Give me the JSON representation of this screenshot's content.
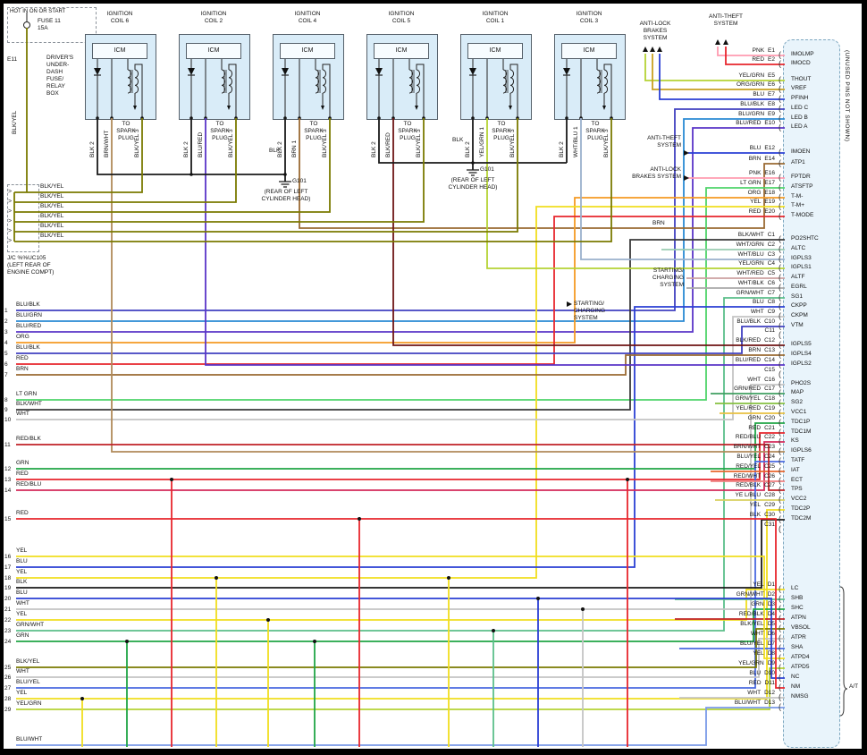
{
  "diagram": {
    "power": {
      "header": "HOT IN ON OR START",
      "fuse": "FUSE 11",
      "amps": "15A",
      "connector": "E11",
      "box": [
        "DRIVER'S",
        "UNDER-",
        "DASH",
        "FUSE/",
        "RELAY",
        "BOX"
      ],
      "wire": "BLK/YEL"
    },
    "junction": {
      "rows": [
        "BLK/YEL",
        "BLK/YEL",
        "BLK/YEL",
        "BLK/YEL",
        "BLK/YEL",
        "BLK/YEL"
      ],
      "name": "J/C %%UC105",
      "loc": [
        "(LEFT REAR OF",
        "ENGINE COMPT)"
      ]
    },
    "coils": [
      {
        "title": [
          "IGNITION",
          "COIL 6"
        ],
        "module": "ICM",
        "left": "BLK 2",
        "mid": "BRN/WHT",
        "right": "BLK/YEL 3",
        "spark": [
          "TO",
          "SPARK",
          "PLUG"
        ]
      },
      {
        "title": [
          "IGNITION",
          "COIL 2"
        ],
        "module": "ICM",
        "left": "BLK 2",
        "mid": "BLU/RED",
        "right": "BLK/YEL 3",
        "spark": [
          "TO",
          "SPARK",
          "PLUG"
        ]
      },
      {
        "title": [
          "IGNITION",
          "COIL 4"
        ],
        "module": "ICM",
        "left": "BLK 2",
        "mid": "BRN 1",
        "right": "BLK/YEL 3",
        "spark": [
          "TO",
          "SPARK",
          "PLUG"
        ]
      },
      {
        "title": [
          "IGNITION",
          "COIL 5"
        ],
        "module": "ICM",
        "left": "BLK 2",
        "mid": "BLK/RED",
        "right": "BLK/YEL 3",
        "spark": [
          "TO",
          "SPARK",
          "PLUG"
        ]
      },
      {
        "title": [
          "IGNITION",
          "COIL 1"
        ],
        "module": "ICM",
        "left": "BLK 2",
        "mid": "YEL/GRN 1",
        "right": "BLK/YEL 3",
        "spark": [
          "TO",
          "SPARK",
          "PLUG"
        ]
      },
      {
        "title": [
          "IGNITION",
          "COIL 3"
        ],
        "module": "ICM",
        "left": "BLK 2",
        "mid": "WHT/BLU 1",
        "right": "BLK/YEL 3",
        "spark": [
          "TO",
          "SPARK",
          "PLUG"
        ]
      }
    ],
    "grounds": [
      {
        "wire": "BLK",
        "id": "G101",
        "loc": [
          "(REAR OF LEFT",
          "CYLINDER HEAD)"
        ]
      },
      {
        "wire": "BLK",
        "id": "G101",
        "loc": [
          "(REAR OF LEFT",
          "CYLINDER HEAD)"
        ]
      }
    ],
    "systems": {
      "abs_top": [
        "ANTI-LOCK",
        "BRAKES",
        "SYSTEM"
      ],
      "theft_top": [
        "ANTI-THEFT",
        "SYSTEM"
      ],
      "theft_mid": [
        "ANTI-THEFT",
        "SYSTEM"
      ],
      "abs_mid": [
        "ANTI-LOCK",
        "BRAKES SYSTEM"
      ],
      "charge_right": [
        "STARTING/",
        "CHARGING",
        "SYSTEM"
      ],
      "charge_mid": [
        "STARTING/",
        "CHARGING",
        "SYSTEM"
      ]
    },
    "notes": {
      "brn": "BRN",
      "unused": "(UNUSED PINS NOT SHOWN)",
      "at": "A/T"
    },
    "connector": {
      "e_pins": [
        {
          "color": "PNK",
          "pin": "E1",
          "signal": "IMOLMP"
        },
        {
          "color": "RED",
          "pin": "E2",
          "signal": "IMOCD"
        },
        {
          "color": "YEL/GRN",
          "pin": "E5",
          "signal": "THOUT"
        },
        {
          "color": "ORG/GRN",
          "pin": "E6",
          "signal": "VREF"
        },
        {
          "color": "BLU",
          "pin": "E7",
          "signal": "PFINH"
        },
        {
          "color": "BLU/BLK",
          "pin": "E8",
          "signal": "LED C"
        },
        {
          "color": "BLU/GRN",
          "pin": "E9",
          "signal": "LED B"
        },
        {
          "color": "BLU/RED",
          "pin": "E10",
          "signal": "LED A"
        },
        {
          "color": "BLU",
          "pin": "E12",
          "signal": "IMOEN"
        },
        {
          "color": "BRN",
          "pin": "E14",
          "signal": "ATP1"
        },
        {
          "color": "PNK",
          "pin": "E16",
          "signal": "FPTDR"
        },
        {
          "color": "LT GRN",
          "pin": "E17",
          "signal": "ATSFTP"
        },
        {
          "color": "ORG",
          "pin": "E18",
          "signal": "T-M-"
        },
        {
          "color": "YEL",
          "pin": "E19",
          "signal": "T-M+"
        },
        {
          "color": "RED",
          "pin": "E20",
          "signal": "T-MODE"
        }
      ],
      "c_pins": [
        {
          "color": "BLK/WHT",
          "pin": "C1",
          "signal": "PO2SHTC"
        },
        {
          "color": "WHT/GRN",
          "pin": "C2",
          "signal": "ALTC"
        },
        {
          "color": "WHT/BLU",
          "pin": "C3",
          "signal": "IGPLS3"
        },
        {
          "color": "YEL/GRN",
          "pin": "C4",
          "signal": "IGPLS1"
        },
        {
          "color": "WHT/RED",
          "pin": "C5",
          "signal": "ALTF"
        },
        {
          "color": "WHT/BLK",
          "pin": "C6",
          "signal": "EGRL"
        },
        {
          "color": "GRN/WHT",
          "pin": "C7",
          "signal": "SG1"
        },
        {
          "color": "BLU",
          "pin": "C8",
          "signal": "CKPP"
        },
        {
          "color": "WHT",
          "pin": "C9",
          "signal": "CKPM"
        },
        {
          "color": "BLU/BLK",
          "pin": "C10",
          "signal": "VTM"
        },
        {
          "color": "",
          "pin": "C11",
          "signal": ""
        },
        {
          "color": "BLK/RED",
          "pin": "C12",
          "signal": "IGPLS5"
        },
        {
          "color": "BRN",
          "pin": "C13",
          "signal": "IGPLS4"
        },
        {
          "color": "BLU/RED",
          "pin": "C14",
          "signal": "IGPLS2"
        },
        {
          "color": "",
          "pin": "C15",
          "signal": ""
        },
        {
          "color": "WHT",
          "pin": "C16",
          "signal": "PHO2S"
        },
        {
          "color": "GRN/RED",
          "pin": "C17",
          "signal": "MAP"
        },
        {
          "color": "GRN/YEL",
          "pin": "C18",
          "signal": "SG2"
        },
        {
          "color": "YEL/RED",
          "pin": "C19",
          "signal": "VCC1"
        },
        {
          "color": "GRN",
          "pin": "C20",
          "signal": "TDC1P"
        },
        {
          "color": "RED",
          "pin": "C21",
          "signal": "TDC1M"
        },
        {
          "color": "RED/BLU",
          "pin": "C22",
          "signal": "KS"
        },
        {
          "color": "BRN/WHT",
          "pin": "C23",
          "signal": "IGPLS6"
        },
        {
          "color": "BLU/YEL",
          "pin": "C24",
          "signal": "TATF"
        },
        {
          "color": "RED/YEL",
          "pin": "C25",
          "signal": "IAT"
        },
        {
          "color": "RED/WHT",
          "pin": "C26",
          "signal": "ECT"
        },
        {
          "color": "RED/BLK",
          "pin": "C27",
          "signal": "TPS"
        },
        {
          "color": "YE L/BLU",
          "pin": "C28",
          "signal": "VCC2"
        },
        {
          "color": "YEL",
          "pin": "C29",
          "signal": "TDC2P"
        },
        {
          "color": "BLK",
          "pin": "C30",
          "signal": "TDC2M"
        },
        {
          "color": "",
          "pin": "C31",
          "signal": ""
        }
      ],
      "d_pins": [
        {
          "color": "YEL",
          "pin": "D1",
          "signal": "LC"
        },
        {
          "color": "GRN/WHT",
          "pin": "D2",
          "signal": "SHB"
        },
        {
          "color": "GRN",
          "pin": "D3",
          "signal": "SHC"
        },
        {
          "color": "RED/BLK",
          "pin": "D4",
          "signal": "ATPN"
        },
        {
          "color": "BLK/YEL",
          "pin": "D5",
          "signal": "VBSOL"
        },
        {
          "color": "WHT",
          "pin": "D6",
          "signal": "ATPR"
        },
        {
          "color": "BLU/YEL",
          "pin": "D7",
          "signal": "SHA"
        },
        {
          "color": "YEL",
          "pin": "D8",
          "signal": "ATPD4"
        },
        {
          "color": "YEL/GRN",
          "pin": "D9",
          "signal": "ATPD5"
        },
        {
          "color": "BLU",
          "pin": "D10",
          "signal": "NC"
        },
        {
          "color": "RED",
          "pin": "D11",
          "signal": "NM"
        },
        {
          "color": "WHT",
          "pin": "D12",
          "signal": "NMSG"
        },
        {
          "color": "BLU/WHT",
          "pin": "D13",
          "signal": ""
        }
      ]
    },
    "left_wires": [
      {
        "num": "1",
        "color": "BLU/BLK"
      },
      {
        "num": "2",
        "color": "BLU/GRN"
      },
      {
        "num": "3",
        "color": "BLU/RED"
      },
      {
        "num": "4",
        "color": "ORG"
      },
      {
        "num": "5",
        "color": "BLU/BLK"
      },
      {
        "num": "6",
        "color": "RED"
      },
      {
        "num": "7",
        "color": "BRN"
      },
      {
        "num": "8",
        "color": "LT GRN"
      },
      {
        "num": "9",
        "color": "BLK/WHT"
      },
      {
        "num": "10",
        "color": "WHT"
      },
      {
        "num": "11",
        "color": "RED/BLK"
      },
      {
        "num": "12",
        "color": "GRN"
      },
      {
        "num": "13",
        "color": "RED"
      },
      {
        "num": "14",
        "color": "RED/BLU"
      },
      {
        "num": "15",
        "color": "RED"
      },
      {
        "num": "16",
        "color": "YEL"
      },
      {
        "num": "17",
        "color": "BLU"
      },
      {
        "num": "18",
        "color": "YEL"
      },
      {
        "num": "19",
        "color": "BLK"
      },
      {
        "num": "20",
        "color": "BLU"
      },
      {
        "num": "21",
        "color": "WHT"
      },
      {
        "num": "22",
        "color": "YEL"
      },
      {
        "num": "23",
        "color": "GRN/WHT"
      },
      {
        "num": "24",
        "color": "GRN"
      },
      {
        "num": "25",
        "color": "BLK/YEL"
      },
      {
        "num": "26",
        "color": "WHT"
      },
      {
        "num": "27",
        "color": "BLU/YEL"
      },
      {
        "num": "28",
        "color": "YEL"
      },
      {
        "num": "29",
        "color": "YEL/GRN"
      },
      {
        "num": "",
        "color": "BLU/WHT"
      }
    ]
  },
  "colors": {
    "BLK": "#1a1a1a",
    "BLK/WHT": "#3a3a3a",
    "BLK/YEL": "#7a7a00",
    "BLK/RED": "#6e1414",
    "PNK": "#ff9bb0",
    "RED": "#e8262d",
    "RED/BLK": "#c02228",
    "RED/BLU": "#d42a5a",
    "RED/YEL": "#e8662d",
    "RED/WHT": "#ef8080",
    "BRN": "#9a6a32",
    "BRN/WHT": "#b08a5a",
    "ORG": "#f59a23",
    "ORG/GRN": "#c8a020",
    "YEL": "#f0de1e",
    "YEL/GRN": "#b5d334",
    "YEL/RED": "#e8c040",
    "YE L/BLU": "#d8d060",
    "GRN": "#20a546",
    "LT GRN": "#4fd46a",
    "GRN/WHT": "#5bbf8a",
    "GRN/RED": "#3f9f60",
    "GRN/YEL": "#86c040",
    "BLU": "#2a3fd4",
    "BLU/BLK": "#4040c0",
    "BLU/GRN": "#2a8ad4",
    "BLU/RED": "#5a35c8",
    "BLU/YEL": "#4a6ae0",
    "BLU/WHT": "#7a9ae8",
    "WHT": "#c4c4c4",
    "WHT/BLU": "#9ab0cc",
    "WHT/GRN": "#9accb0",
    "WHT/RED": "#cca0a0",
    "WHT/BLK": "#a8a8a8"
  }
}
